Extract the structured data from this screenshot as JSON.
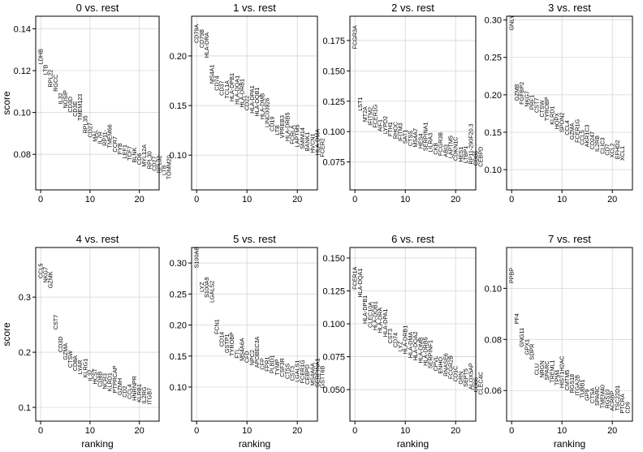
{
  "chart_data": [
    {
      "type": "text-scatter",
      "title": "0 vs. rest",
      "xlabel": "",
      "ylabel": "score",
      "xlim": [
        -1,
        24
      ],
      "ylim": [
        0.063,
        0.146
      ],
      "xticks": [
        0,
        10,
        20
      ],
      "yticks": [
        0.08,
        0.1,
        0.12,
        0.14
      ],
      "ytick_labels": [
        "0.08",
        "0.10",
        "0.12",
        "0.14"
      ],
      "genes": [
        "LDHB",
        "LTB",
        "RPL22",
        "RGCC",
        "IL32",
        "NOSIP",
        "CD3D",
        "CD3E",
        "TMEM123",
        "RPL35",
        "CD27",
        "MAL",
        "IL7R",
        "RP11-",
        "TMEM66",
        "CCR7",
        "FYB",
        "LEF1",
        "TCF7",
        "BLNK",
        "CD6",
        "MYL12A",
        "RPL30",
        "CD27",
        "RPL32",
        "LTB",
        "TOMM20"
      ],
      "scores": [
        0.123,
        0.118,
        0.112,
        0.11,
        0.104,
        0.102,
        0.1,
        0.098,
        0.096,
        0.09,
        0.088,
        0.086,
        0.085,
        0.084,
        0.083,
        0.081,
        0.08,
        0.078,
        0.077,
        0.076,
        0.075,
        0.074,
        0.073,
        0.072,
        0.071,
        0.07,
        0.068
      ]
    },
    {
      "type": "text-scatter",
      "title": "1 vs. rest",
      "xlabel": "",
      "ylabel": "",
      "xlim": [
        -1,
        24
      ],
      "ylim": [
        0.065,
        0.24
      ],
      "xticks": [
        0,
        10,
        20
      ],
      "yticks": [
        0.1,
        0.15,
        0.2
      ],
      "ytick_labels": [
        "0.10",
        "0.15",
        "0.20"
      ],
      "genes": [
        "CD79A",
        "CD79B",
        "HLA-DRA",
        "MS4A1",
        "CD74",
        "CD37",
        "TCL1A",
        "HLA-DPB1",
        "HLA-DQA1",
        "HLA-DRB1",
        "CD22",
        "HLA-DPA1",
        "HLA-DQB1",
        "HLA-DMB",
        "LINC00926",
        "CD19",
        "LTB",
        "VPREB3",
        "HLA-DRB5",
        "FCRLA",
        "LAPTM5",
        "SMIM14",
        "BANK1",
        "HVCN1",
        "HLA-DMA",
        "FCER2"
      ],
      "scores": [
        0.213,
        0.208,
        0.198,
        0.172,
        0.165,
        0.16,
        0.157,
        0.154,
        0.151,
        0.148,
        0.145,
        0.142,
        0.139,
        0.136,
        0.128,
        0.124,
        0.12,
        0.117,
        0.114,
        0.111,
        0.108,
        0.106,
        0.104,
        0.102,
        0.1,
        0.098
      ]
    },
    {
      "type": "text-scatter",
      "title": "2 vs. rest",
      "xlabel": "",
      "ylabel": "",
      "xlim": [
        -1,
        24
      ],
      "ylim": [
        0.052,
        0.195
      ],
      "xticks": [
        0,
        10,
        20
      ],
      "yticks": [
        0.075,
        0.1,
        0.125,
        0.15,
        0.175
      ],
      "ytick_labels": [
        "0.075",
        "0.100",
        "0.125",
        "0.150",
        "0.175"
      ],
      "genes": [
        "FCGR3A",
        "LST1",
        "MT2A",
        "IFITM2",
        "FCER1G",
        "AIF1",
        "LYPD2",
        "FTH1",
        "RHOC",
        "IFITM3",
        "SAT1",
        "CTSS",
        "MS4A7",
        "HES4",
        "SERPINA1",
        "LILRA3",
        "CKB",
        "FCGR3B",
        "ABI3",
        "LAPTM5",
        "CDKN1C",
        "HES1",
        "LTBP1",
        "RP11-290F20.3",
        "CD86",
        "CEBPD"
      ],
      "scores": [
        0.168,
        0.117,
        0.108,
        0.105,
        0.103,
        0.1,
        0.098,
        0.096,
        0.094,
        0.092,
        0.09,
        0.088,
        0.087,
        0.086,
        0.084,
        0.083,
        0.081,
        0.08,
        0.079,
        0.078,
        0.076,
        0.075,
        0.074,
        0.073,
        0.072,
        0.071
      ]
    },
    {
      "type": "text-scatter",
      "title": "3 vs. rest",
      "xlabel": "",
      "ylabel": "",
      "xlim": [
        -1,
        24
      ],
      "ylim": [
        0.073,
        0.305
      ],
      "xticks": [
        0,
        10,
        20
      ],
      "yticks": [
        0.1,
        0.15,
        0.2,
        0.25,
        0.3
      ],
      "ytick_labels": [
        "0.10",
        "0.15",
        "0.20",
        "0.25",
        "0.30"
      ],
      "genes": [
        "GNLY",
        "GZMB",
        "FGFBP2",
        "NKG7",
        "PRF1",
        "CST7",
        "CTSW",
        "TYROBP",
        "KLRD1",
        "HOPX",
        "SPON2",
        "CCL4",
        "GZMA",
        "FCER1G",
        "CCL5",
        "AKR1C3",
        "CD247",
        "IL2RB",
        "CLIC3",
        "CD7",
        "XCL2",
        "EFHD2",
        "XCL1"
      ],
      "scores": [
        0.286,
        0.192,
        0.187,
        0.184,
        0.18,
        0.176,
        0.17,
        0.165,
        0.16,
        0.154,
        0.15,
        0.146,
        0.14,
        0.136,
        0.133,
        0.13,
        0.127,
        0.124,
        0.121,
        0.119,
        0.116,
        0.114,
        0.112
      ]
    },
    {
      "type": "text-scatter",
      "title": "4 vs. rest",
      "xlabel": "ranking",
      "ylabel": "score",
      "xlim": [
        -1,
        24
      ],
      "ylim": [
        0.075,
        0.39
      ],
      "xticks": [
        0,
        10,
        20
      ],
      "yticks": [
        0.1,
        0.2,
        0.3
      ],
      "ytick_labels": [
        "0.1",
        "0.2",
        "0.3"
      ],
      "genes": [
        "CCL5",
        "NKG7",
        "GZMK",
        "CST7",
        "CD3D",
        "GZMA",
        "CTSW",
        "CD8A",
        "LYAR",
        "KLRG1",
        "IL32",
        "HCST",
        "CD8B",
        "NCR3",
        "KLRD1",
        "PTPRCAP",
        "GZMH",
        "CD2",
        "CCL4",
        "HNRNPR",
        "KLRB1",
        "IL2RG",
        "ITGB7"
      ],
      "scores": [
        0.334,
        0.326,
        0.316,
        0.241,
        0.2,
        0.186,
        0.172,
        0.166,
        0.16,
        0.154,
        0.148,
        0.142,
        0.137,
        0.133,
        0.129,
        0.126,
        0.122,
        0.118,
        0.115,
        0.112,
        0.109,
        0.107,
        0.105
      ]
    },
    {
      "type": "text-scatter",
      "title": "5 vs. rest",
      "xlabel": "ranking",
      "ylabel": "",
      "xlim": [
        -1,
        24
      ],
      "ylim": [
        0.045,
        0.325
      ],
      "xticks": [
        0,
        10,
        20
      ],
      "yticks": [
        0.1,
        0.15,
        0.2,
        0.25,
        0.3
      ],
      "ytick_labels": [
        "0.10",
        "0.15",
        "0.20",
        "0.25",
        "0.30"
      ],
      "genes": [
        "S100A8",
        "LYZ",
        "S100A9",
        "LGALS2",
        "FCN1",
        "CD14",
        "GSTP1",
        "TYROBP",
        "FTL",
        "MS4A6A",
        "CFD",
        "NPC2",
        "APOBEC3A",
        "CFP",
        "FPR1",
        "PLBD1",
        "TYMP",
        "CSF3R",
        "CTSS",
        "CST3",
        "LGALS1",
        "FCER1G",
        "CEBPD",
        "MS4A6A",
        "SERPINA1",
        "GSTT6B"
      ],
      "scores": [
        0.292,
        0.253,
        0.244,
        0.236,
        0.185,
        0.165,
        0.155,
        0.15,
        0.146,
        0.142,
        0.139,
        0.135,
        0.131,
        0.128,
        0.125,
        0.122,
        0.119,
        0.116,
        0.113,
        0.11,
        0.108,
        0.106,
        0.104,
        0.102,
        0.1,
        0.098
      ]
    },
    {
      "type": "text-scatter",
      "title": "6 vs. rest",
      "xlabel": "ranking",
      "ylabel": "",
      "xlim": [
        -1,
        24
      ],
      "ylim": [
        0.026,
        0.158
      ],
      "xticks": [
        0,
        10,
        20
      ],
      "yticks": [
        0.05,
        0.075,
        0.1,
        0.125,
        0.15
      ],
      "ytick_labels": [
        "0.050",
        "0.075",
        "0.100",
        "0.125",
        "0.150"
      ],
      "genes": [
        "FCER1A",
        "HLA-DQA1",
        "HLA-DPB1",
        "CLEC10A",
        "HLA-DQB1",
        "HLA-DRA",
        "HLA-DPA1",
        "CST3",
        "CD74",
        "LYZ",
        "HLA-DRB1",
        "HLA-DMA",
        "HLA-DQA2",
        "HLA-DMB",
        "HLA-DRB5",
        "SERPINF1",
        "CPVL",
        "ENHO",
        "RNASE6",
        "FCGR2B",
        "CD1C",
        "GRN",
        "SEPT5",
        "ALOX5AP",
        "CD86",
        "CLEC4C"
      ],
      "scores": [
        0.126,
        0.12,
        0.1,
        0.097,
        0.095,
        0.093,
        0.09,
        0.085,
        0.082,
        0.079,
        0.077,
        0.074,
        0.072,
        0.07,
        0.068,
        0.066,
        0.064,
        0.062,
        0.06,
        0.058,
        0.056,
        0.054,
        0.052,
        0.05,
        0.048,
        0.046
      ]
    },
    {
      "type": "text-scatter",
      "title": "7 vs. rest",
      "xlabel": "ranking",
      "ylabel": "",
      "xlim": [
        -1,
        24
      ],
      "ylim": [
        0.048,
        0.116
      ],
      "xticks": [
        0,
        10,
        20
      ],
      "yticks": [
        0.06,
        0.08,
        0.1
      ],
      "ytick_labels": [
        "0.06",
        "0.08",
        "0.10"
      ],
      "genes": [
        "PPBP",
        "PF4",
        "GNG11",
        "GPX1",
        "SDPR",
        "CLU",
        "NRGN",
        "SPARC",
        "TREML1",
        "TPM4",
        "HIST1H2AC",
        "CMTM5",
        "RGS18",
        "ITGA2B",
        "TUBB1",
        "GP9",
        "CTSA",
        "SPARC",
        "TMEM40",
        "RGS10",
        "ACRBP",
        "TSC22D1",
        "PTCRA",
        "CD9"
      ],
      "scores": [
        0.102,
        0.086,
        0.077,
        0.074,
        0.072,
        0.066,
        0.065,
        0.064,
        0.063,
        0.062,
        0.061,
        0.06,
        0.059,
        0.058,
        0.057,
        0.056,
        0.055,
        0.054,
        0.053,
        0.053,
        0.052,
        0.052,
        0.051,
        0.051
      ]
    }
  ]
}
